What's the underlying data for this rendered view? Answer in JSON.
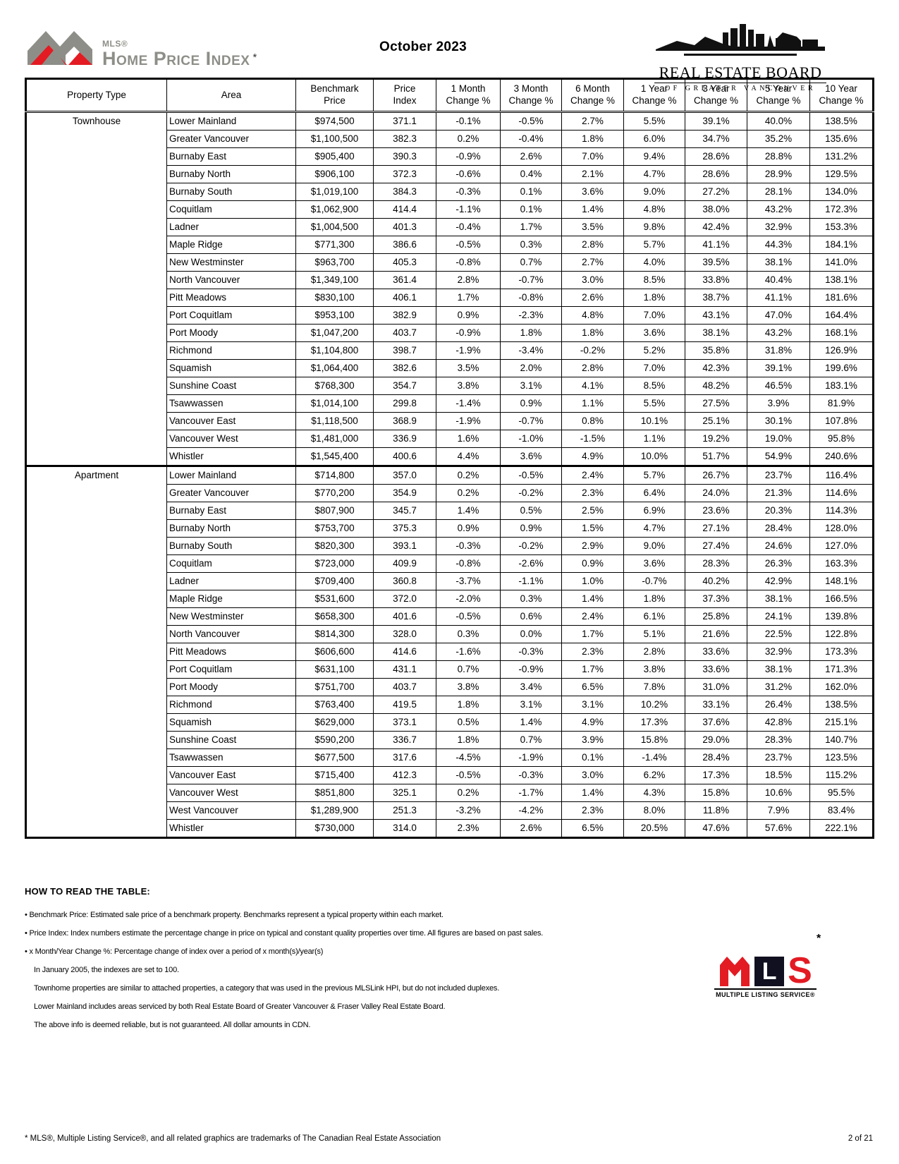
{
  "header": {
    "hpi_logo": {
      "mls": "MLS®",
      "title": "Home Price Index",
      "asterisk": "*"
    },
    "report_date": "October 2023",
    "board_logo": {
      "name": "REAL ESTATE BOARD",
      "subtitle": "OF GREATER VANCOUVER"
    }
  },
  "table": {
    "columns": [
      {
        "line1": "Property Type",
        "line2": ""
      },
      {
        "line1": "Area",
        "line2": ""
      },
      {
        "line1": "Benchmark",
        "line2": "Price"
      },
      {
        "line1": "Price",
        "line2": "Index"
      },
      {
        "line1": "1 Month",
        "line2": "Change %"
      },
      {
        "line1": "3 Month",
        "line2": "Change %"
      },
      {
        "line1": "6 Month",
        "line2": "Change %"
      },
      {
        "line1": "1 Year",
        "line2": "Change %"
      },
      {
        "line1": "3 Year",
        "line2": "Change %"
      },
      {
        "line1": "5 Year",
        "line2": "Change %"
      },
      {
        "line1": "10 Year",
        "line2": "Change %"
      }
    ],
    "sections": [
      {
        "property_type": "Townhouse",
        "rows": [
          [
            "Lower Mainland",
            "$974,500",
            "371.1",
            "-0.1%",
            "-0.5%",
            "2.7%",
            "5.5%",
            "39.1%",
            "40.0%",
            "138.5%"
          ],
          [
            "Greater Vancouver",
            "$1,100,500",
            "382.3",
            "0.2%",
            "-0.4%",
            "1.8%",
            "6.0%",
            "34.7%",
            "35.2%",
            "135.6%"
          ],
          [
            "Burnaby East",
            "$905,400",
            "390.3",
            "-0.9%",
            "2.6%",
            "7.0%",
            "9.4%",
            "28.6%",
            "28.8%",
            "131.2%"
          ],
          [
            "Burnaby North",
            "$906,100",
            "372.3",
            "-0.6%",
            "0.4%",
            "2.1%",
            "4.7%",
            "28.6%",
            "28.9%",
            "129.5%"
          ],
          [
            "Burnaby South",
            "$1,019,100",
            "384.3",
            "-0.3%",
            "0.1%",
            "3.6%",
            "9.0%",
            "27.2%",
            "28.1%",
            "134.0%"
          ],
          [
            "Coquitlam",
            "$1,062,900",
            "414.4",
            "-1.1%",
            "0.1%",
            "1.4%",
            "4.8%",
            "38.0%",
            "43.2%",
            "172.3%"
          ],
          [
            "Ladner",
            "$1,004,500",
            "401.3",
            "-0.4%",
            "1.7%",
            "3.5%",
            "9.8%",
            "42.4%",
            "32.9%",
            "153.3%"
          ],
          [
            "Maple Ridge",
            "$771,300",
            "386.6",
            "-0.5%",
            "0.3%",
            "2.8%",
            "5.7%",
            "41.1%",
            "44.3%",
            "184.1%"
          ],
          [
            "New Westminster",
            "$963,700",
            "405.3",
            "-0.8%",
            "0.7%",
            "2.7%",
            "4.0%",
            "39.5%",
            "38.1%",
            "141.0%"
          ],
          [
            "North Vancouver",
            "$1,349,100",
            "361.4",
            "2.8%",
            "-0.7%",
            "3.0%",
            "8.5%",
            "33.8%",
            "40.4%",
            "138.1%"
          ],
          [
            "Pitt Meadows",
            "$830,100",
            "406.1",
            "1.7%",
            "-0.8%",
            "2.6%",
            "1.8%",
            "38.7%",
            "41.1%",
            "181.6%"
          ],
          [
            "Port Coquitlam",
            "$953,100",
            "382.9",
            "0.9%",
            "-2.3%",
            "4.8%",
            "7.0%",
            "43.1%",
            "47.0%",
            "164.4%"
          ],
          [
            "Port Moody",
            "$1,047,200",
            "403.7",
            "-0.9%",
            "1.8%",
            "1.8%",
            "3.6%",
            "38.1%",
            "43.2%",
            "168.1%"
          ],
          [
            "Richmond",
            "$1,104,800",
            "398.7",
            "-1.9%",
            "-3.4%",
            "-0.2%",
            "5.2%",
            "35.8%",
            "31.8%",
            "126.9%"
          ],
          [
            "Squamish",
            "$1,064,400",
            "382.6",
            "3.5%",
            "2.0%",
            "2.8%",
            "7.0%",
            "42.3%",
            "39.1%",
            "199.6%"
          ],
          [
            "Sunshine Coast",
            "$768,300",
            "354.7",
            "3.8%",
            "3.1%",
            "4.1%",
            "8.5%",
            "48.2%",
            "46.5%",
            "183.1%"
          ],
          [
            "Tsawwassen",
            "$1,014,100",
            "299.8",
            "-1.4%",
            "0.9%",
            "1.1%",
            "5.5%",
            "27.5%",
            "3.9%",
            "81.9%"
          ],
          [
            "Vancouver East",
            "$1,118,500",
            "368.9",
            "-1.9%",
            "-0.7%",
            "0.8%",
            "10.1%",
            "25.1%",
            "30.1%",
            "107.8%"
          ],
          [
            "Vancouver West",
            "$1,481,000",
            "336.9",
            "1.6%",
            "-1.0%",
            "-1.5%",
            "1.1%",
            "19.2%",
            "19.0%",
            "95.8%"
          ],
          [
            "Whistler",
            "$1,545,400",
            "400.6",
            "4.4%",
            "3.6%",
            "4.9%",
            "10.0%",
            "51.7%",
            "54.9%",
            "240.6%"
          ]
        ]
      },
      {
        "property_type": "Apartment",
        "rows": [
          [
            "Lower Mainland",
            "$714,800",
            "357.0",
            "0.2%",
            "-0.5%",
            "2.4%",
            "5.7%",
            "26.7%",
            "23.7%",
            "116.4%"
          ],
          [
            "Greater Vancouver",
            "$770,200",
            "354.9",
            "0.2%",
            "-0.2%",
            "2.3%",
            "6.4%",
            "24.0%",
            "21.3%",
            "114.6%"
          ],
          [
            "Burnaby East",
            "$807,900",
            "345.7",
            "1.4%",
            "0.5%",
            "2.5%",
            "6.9%",
            "23.6%",
            "20.3%",
            "114.3%"
          ],
          [
            "Burnaby North",
            "$753,700",
            "375.3",
            "0.9%",
            "0.9%",
            "1.5%",
            "4.7%",
            "27.1%",
            "28.4%",
            "128.0%"
          ],
          [
            "Burnaby South",
            "$820,300",
            "393.1",
            "-0.3%",
            "-0.2%",
            "2.9%",
            "9.0%",
            "27.4%",
            "24.6%",
            "127.0%"
          ],
          [
            "Coquitlam",
            "$723,000",
            "409.9",
            "-0.8%",
            "-2.6%",
            "0.9%",
            "3.6%",
            "28.3%",
            "26.3%",
            "163.3%"
          ],
          [
            "Ladner",
            "$709,400",
            "360.8",
            "-3.7%",
            "-1.1%",
            "1.0%",
            "-0.7%",
            "40.2%",
            "42.9%",
            "148.1%"
          ],
          [
            "Maple Ridge",
            "$531,600",
            "372.0",
            "-2.0%",
            "0.3%",
            "1.4%",
            "1.8%",
            "37.3%",
            "38.1%",
            "166.5%"
          ],
          [
            "New Westminster",
            "$658,300",
            "401.6",
            "-0.5%",
            "0.6%",
            "2.4%",
            "6.1%",
            "25.8%",
            "24.1%",
            "139.8%"
          ],
          [
            "North Vancouver",
            "$814,300",
            "328.0",
            "0.3%",
            "0.0%",
            "1.7%",
            "5.1%",
            "21.6%",
            "22.5%",
            "122.8%"
          ],
          [
            "Pitt Meadows",
            "$606,600",
            "414.6",
            "-1.6%",
            "-0.3%",
            "2.3%",
            "2.8%",
            "33.6%",
            "32.9%",
            "173.3%"
          ],
          [
            "Port Coquitlam",
            "$631,100",
            "431.1",
            "0.7%",
            "-0.9%",
            "1.7%",
            "3.8%",
            "33.6%",
            "38.1%",
            "171.3%"
          ],
          [
            "Port Moody",
            "$751,700",
            "403.7",
            "3.8%",
            "3.4%",
            "6.5%",
            "7.8%",
            "31.0%",
            "31.2%",
            "162.0%"
          ],
          [
            "Richmond",
            "$763,400",
            "419.5",
            "1.8%",
            "3.1%",
            "3.1%",
            "10.2%",
            "33.1%",
            "26.4%",
            "138.5%"
          ],
          [
            "Squamish",
            "$629,000",
            "373.1",
            "0.5%",
            "1.4%",
            "4.9%",
            "17.3%",
            "37.6%",
            "42.8%",
            "215.1%"
          ],
          [
            "Sunshine Coast",
            "$590,200",
            "336.7",
            "1.8%",
            "0.7%",
            "3.9%",
            "15.8%",
            "29.0%",
            "28.3%",
            "140.7%"
          ],
          [
            "Tsawwassen",
            "$677,500",
            "317.6",
            "-4.5%",
            "-1.9%",
            "0.1%",
            "-1.4%",
            "28.4%",
            "23.7%",
            "123.5%"
          ],
          [
            "Vancouver East",
            "$715,400",
            "412.3",
            "-0.5%",
            "-0.3%",
            "3.0%",
            "6.2%",
            "17.3%",
            "18.5%",
            "115.2%"
          ],
          [
            "Vancouver West",
            "$851,800",
            "325.1",
            "0.2%",
            "-1.7%",
            "1.4%",
            "4.3%",
            "15.8%",
            "10.6%",
            "95.5%"
          ],
          [
            "West Vancouver",
            "$1,289,900",
            "251.3",
            "-3.2%",
            "-4.2%",
            "2.3%",
            "8.0%",
            "11.8%",
            "7.9%",
            "83.4%"
          ],
          [
            "Whistler",
            "$730,000",
            "314.0",
            "2.3%",
            "2.6%",
            "6.5%",
            "20.5%",
            "47.6%",
            "57.6%",
            "222.1%"
          ]
        ]
      }
    ]
  },
  "notes": {
    "heading": "HOW TO READ THE TABLE:",
    "items": [
      {
        "text": "• Benchmark Price:  Estimated sale price of a benchmark property. Benchmarks represent a typical property within each market."
      },
      {
        "text": "• Price Index:  Index numbers estimate the percentage change in price on typical and constant  quality properties over time. All figures are based on past sales."
      },
      {
        "text": "• x Month/Year Change %:  Percentage change of index over a period of x month(s)/year(s)"
      },
      {
        "text": "In January 2005, the indexes are set to 100."
      },
      {
        "text": "Townhome properties are similar to attached properties, a category that was used in the previous MLSLink HPI, but do not included duplexes."
      },
      {
        "text": "Lower Mainland includes areas serviced by both Real Estate Board of Greater Vancouver & Fraser Valley Real Estate Board."
      },
      {
        "text": "The above info is deemed reliable, but is not guaranteed. All dollar amounts in CDN."
      }
    ]
  },
  "mls_block_logo": {
    "l": "L",
    "s": "S",
    "caption": "MULTIPLE LISTING SERVICE®",
    "asterisk": "*"
  },
  "footer": {
    "trademark": "* MLS®, Multiple Listing Service®, and all related graphics are trademarks of The Canadian Real Estate Association",
    "page": "2 of 21"
  }
}
